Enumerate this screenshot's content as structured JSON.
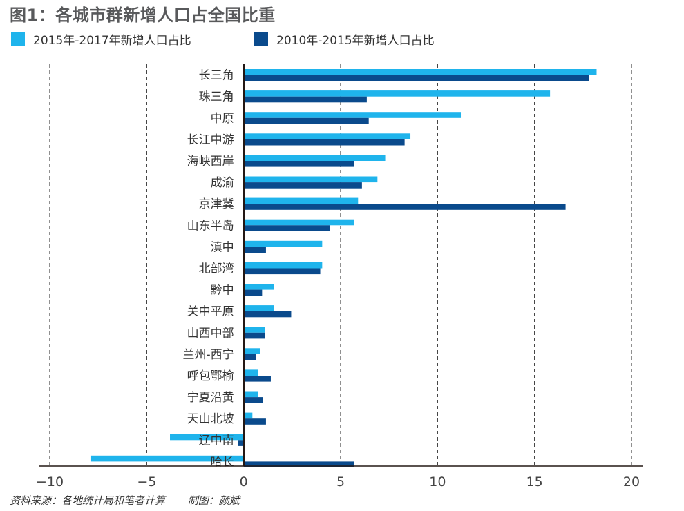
{
  "title": "图1：各城市群新增人口占全国比重",
  "legend": [
    {
      "label": "2015年-2017年新增人口占比",
      "color": "#1fb4ec"
    },
    {
      "label": "2010年-2015年新增人口占比",
      "color": "#0a4a8c"
    }
  ],
  "source": "资料来源：各地统计局和笔者计算",
  "author": "制图：颜斌",
  "chart_data": {
    "type": "bar",
    "orientation": "horizontal",
    "title": "图1：各城市群新增人口占全国比重",
    "xlabel": "",
    "ylabel": "",
    "xlim": [
      -10,
      20
    ],
    "x_ticks": [
      -10,
      -5,
      0,
      5,
      10,
      15,
      20
    ],
    "x_tick_labels": [
      "−10",
      "−5",
      "0",
      "5",
      "10",
      "15",
      "20"
    ],
    "grid": "vertical-dashed",
    "legend_position": "top-left",
    "categories": [
      "长三角",
      "珠三角",
      "中原",
      "长江中游",
      "海峡西岸",
      "成渝",
      "京津冀",
      "山东半岛",
      "滇中",
      "北部湾",
      "黔中",
      "关中平原",
      "山西中部",
      "兰州-西宁",
      "呼包鄂榆",
      "宁夏沿黄",
      "天山北坡",
      "辽中南",
      "哈长"
    ],
    "series": [
      {
        "name": "2015年-2017年新增人口占比",
        "color": "#1fb4ec",
        "values": [
          18.2,
          15.8,
          11.2,
          8.6,
          7.3,
          6.9,
          5.9,
          5.7,
          4.05,
          4.05,
          1.55,
          1.55,
          1.1,
          0.85,
          0.75,
          0.75,
          0.45,
          -3.8,
          -7.9
        ]
      },
      {
        "name": "2010年-2015年新增人口占比",
        "color": "#0a4a8c",
        "values": [
          17.8,
          6.35,
          6.45,
          8.3,
          5.7,
          6.1,
          16.6,
          4.45,
          1.15,
          3.95,
          0.95,
          2.45,
          1.1,
          0.65,
          1.4,
          1.0,
          1.15,
          -0.3,
          5.7
        ]
      }
    ]
  }
}
